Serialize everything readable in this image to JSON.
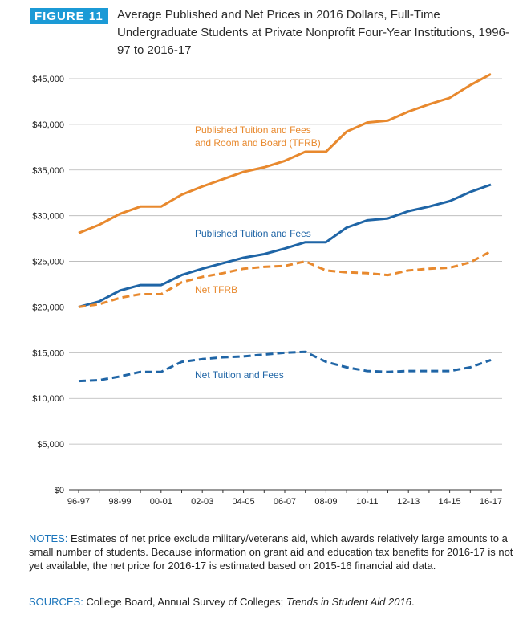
{
  "header": {
    "badge": "FIGURE 11",
    "title": "Average Published and Net Prices in 2016 Dollars, Full-Time Undergraduate Students at Private Nonprofit Four-Year Institutions, 1996-97 to 2016-17"
  },
  "colors": {
    "orange": "#e8892e",
    "blue": "#1f65a6",
    "badge": "#1b9ad6",
    "grid": "#b5b5b5"
  },
  "chart_data": {
    "type": "line",
    "x": [
      "96-97",
      "97-98",
      "98-99",
      "99-00",
      "00-01",
      "01-02",
      "02-03",
      "03-04",
      "04-05",
      "05-06",
      "06-07",
      "07-08",
      "08-09",
      "09-10",
      "10-11",
      "11-12",
      "12-13",
      "13-14",
      "14-15",
      "15-16",
      "16-17"
    ],
    "x_tick_labels": [
      "96-97",
      "98-99",
      "00-01",
      "02-03",
      "04-05",
      "06-07",
      "08-09",
      "10-11",
      "12-13",
      "14-15",
      "16-17"
    ],
    "ylim": [
      0,
      45000
    ],
    "y_ticks": [
      0,
      5000,
      10000,
      15000,
      20000,
      25000,
      30000,
      35000,
      40000,
      45000
    ],
    "y_tick_labels": [
      "$0",
      "$5,000",
      "$10,000",
      "$15,000",
      "$20,000",
      "$25,000",
      "$30,000",
      "$35,000",
      "$40,000",
      "$45,000"
    ],
    "grid": true,
    "series": [
      {
        "name": "Published Tuition and Fees and Room and Board (TFRB)",
        "label_lines": [
          "Published Tuition and Fees",
          "and Room and Board (TFRB)"
        ],
        "color": "#e8892e",
        "style": "solid",
        "values": [
          28100,
          29000,
          30200,
          31000,
          31000,
          32300,
          33200,
          34000,
          34800,
          35300,
          36000,
          37000,
          37000,
          39200,
          40200,
          40400,
          41400,
          42200,
          42900,
          44300,
          45500
        ]
      },
      {
        "name": "Published Tuition and Fees",
        "label_lines": [
          "Published Tuition and Fees"
        ],
        "color": "#1f65a6",
        "style": "solid",
        "values": [
          20000,
          20600,
          21800,
          22400,
          22400,
          23500,
          24200,
          24800,
          25400,
          25800,
          26400,
          27100,
          27100,
          28700,
          29500,
          29700,
          30500,
          31000,
          31600,
          32600,
          33400
        ]
      },
      {
        "name": "Net TFRB",
        "label_lines": [
          "Net TFRB"
        ],
        "color": "#e8892e",
        "style": "dashed",
        "values": [
          20000,
          20300,
          21000,
          21400,
          21400,
          22700,
          23300,
          23700,
          24200,
          24400,
          24500,
          25000,
          24000,
          23800,
          23700,
          23500,
          24000,
          24200,
          24300,
          24900,
          26100
        ]
      },
      {
        "name": "Net Tuition and Fees",
        "label_lines": [
          "Net Tuition and Fees"
        ],
        "color": "#1f65a6",
        "style": "dashed",
        "values": [
          11900,
          12000,
          12400,
          12900,
          12900,
          14000,
          14300,
          14500,
          14600,
          14800,
          15000,
          15100,
          14000,
          13400,
          13000,
          12900,
          13000,
          13000,
          13000,
          13400,
          14200
        ]
      }
    ]
  },
  "notes": {
    "label": "NOTES:",
    "text": " Estimates of net price exclude military/veterans aid, which awards relatively large amounts to a small number of students. Because information on grant aid and education tax benefits for 2016-17 is not yet available, the net price for 2016-17 is estimated based on 2015-16 financial aid data."
  },
  "sources": {
    "label": "SOURCES:",
    "text": " College Board, Annual Survey of Colleges; ",
    "italic": "Trends in Student Aid 2016",
    "end": "."
  }
}
